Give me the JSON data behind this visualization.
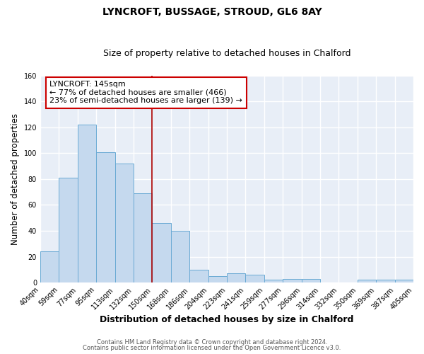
{
  "title": "LYNCROFT, BUSSAGE, STROUD, GL6 8AY",
  "subtitle": "Size of property relative to detached houses in Chalford",
  "xlabel": "Distribution of detached houses by size in Chalford",
  "ylabel": "Number of detached properties",
  "bar_labels": [
    "40sqm",
    "59sqm",
    "77sqm",
    "95sqm",
    "113sqm",
    "132sqm",
    "150sqm",
    "168sqm",
    "186sqm",
    "204sqm",
    "223sqm",
    "241sqm",
    "259sqm",
    "277sqm",
    "296sqm",
    "314sqm",
    "332sqm",
    "350sqm",
    "369sqm",
    "387sqm",
    "405sqm"
  ],
  "bar_values": [
    24,
    81,
    122,
    101,
    92,
    69,
    46,
    40,
    10,
    5,
    7,
    6,
    2,
    3,
    3,
    0,
    0,
    2,
    2,
    2
  ],
  "bar_color": "#c5d9ee",
  "bar_edge_color": "#6aaad4",
  "vline_color": "#aa0000",
  "annotation_title": "LYNCROFT: 145sqm",
  "annotation_line1": "← 77% of detached houses are smaller (466)",
  "annotation_line2": "23% of semi-detached houses are larger (139) →",
  "annotation_box_color": "white",
  "annotation_box_edge": "#cc0000",
  "ylim": [
    0,
    160
  ],
  "yticks": [
    0,
    20,
    40,
    60,
    80,
    100,
    120,
    140,
    160
  ],
  "footer1": "Contains HM Land Registry data © Crown copyright and database right 2024.",
  "footer2": "Contains public sector information licensed under the Open Government Licence v3.0.",
  "bg_color": "#ffffff",
  "plot_bg_color": "#e8eef7",
  "grid_color": "#ffffff",
  "title_fontsize": 10,
  "subtitle_fontsize": 9
}
